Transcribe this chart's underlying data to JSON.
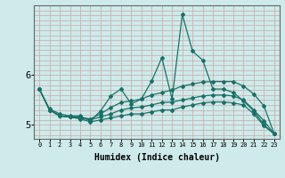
{
  "xlabel": "Humidex (Indice chaleur)",
  "bg_color": "#ceeaea",
  "line_color": "#1a7068",
  "grid_color": "#c8a8a8",
  "xlim": [
    -0.5,
    23.5
  ],
  "ylim": [
    4.72,
    7.4
  ],
  "yticks": [
    5,
    6
  ],
  "xticks": [
    0,
    1,
    2,
    3,
    4,
    5,
    6,
    7,
    8,
    9,
    10,
    11,
    12,
    13,
    14,
    15,
    16,
    17,
    18,
    19,
    20,
    21,
    22,
    23
  ],
  "series": [
    [
      5.72,
      5.32,
      5.22,
      5.18,
      5.18,
      5.08,
      5.28,
      5.58,
      5.72,
      5.42,
      5.52,
      5.88,
      6.35,
      5.52,
      7.22,
      6.48,
      6.3,
      5.72,
      5.72,
      5.65,
      5.48,
      5.28,
      5.0,
      4.82
    ],
    [
      5.72,
      5.3,
      5.18,
      5.16,
      5.15,
      5.12,
      5.22,
      5.35,
      5.45,
      5.48,
      5.52,
      5.6,
      5.65,
      5.7,
      5.78,
      5.82,
      5.86,
      5.87,
      5.87,
      5.87,
      5.78,
      5.62,
      5.38,
      4.82
    ],
    [
      5.72,
      5.3,
      5.18,
      5.16,
      5.14,
      5.1,
      5.16,
      5.22,
      5.3,
      5.34,
      5.36,
      5.4,
      5.45,
      5.46,
      5.5,
      5.54,
      5.58,
      5.6,
      5.6,
      5.58,
      5.5,
      5.3,
      5.08,
      4.82
    ],
    [
      5.72,
      5.3,
      5.18,
      5.16,
      5.12,
      5.06,
      5.1,
      5.14,
      5.18,
      5.22,
      5.22,
      5.26,
      5.3,
      5.3,
      5.36,
      5.4,
      5.44,
      5.46,
      5.46,
      5.44,
      5.4,
      5.22,
      4.98,
      4.82
    ]
  ],
  "marker": "D",
  "markersize": 2.0,
  "linewidth": 0.9
}
